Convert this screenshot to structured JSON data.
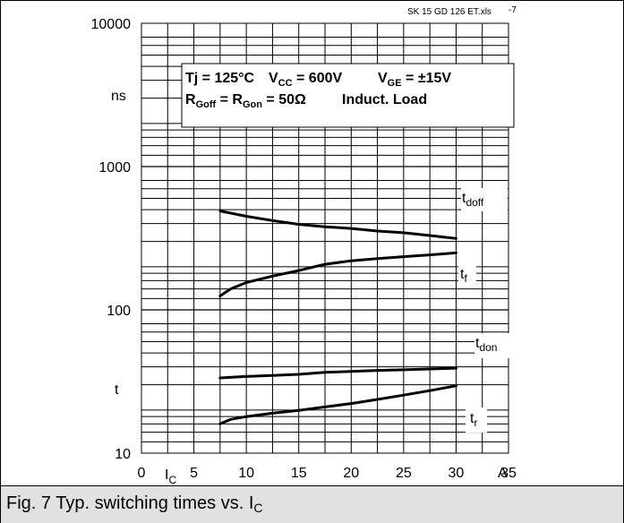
{
  "caption": {
    "text": "Fig. 7 Typ. switching times vs. I",
    "sub": "C"
  },
  "file_tag": "SK 15 GD 126 ET.xls",
  "page_tag": "-7",
  "conditions": {
    "line1": [
      {
        "text": "Tj = 125°C"
      },
      {
        "main": "V",
        "sub": "CC",
        "rest": " = 600V"
      },
      {
        "main": "V",
        "sub": "GE",
        "rest": " = ±15V"
      }
    ],
    "line2": [
      {
        "main": "R",
        "sub": "Goff",
        "rest": " = R"
      },
      {
        "main": "",
        "sub": "Gon",
        "rest": " = 50Ω"
      },
      {
        "text": "Induct. Load"
      }
    ]
  },
  "colors": {
    "line": "#000000",
    "background": "#ffffff",
    "caption_bg": "#e1e1e1"
  },
  "chart_data": {
    "type": "line",
    "yscale": "log",
    "ylim": [
      10,
      10000
    ],
    "xlim": [
      0,
      35
    ],
    "ylabel": "ns",
    "ylabel2": "t",
    "xlabel_symbol": "I",
    "xlabel_sub": "C",
    "xunit": "A",
    "x_ticks": [
      "0",
      "5",
      "10",
      "15",
      "20",
      "25",
      "30",
      "35"
    ],
    "x_tick_values": [
      0,
      5,
      10,
      15,
      20,
      25,
      30,
      35
    ],
    "y_ticks": [
      "10",
      "100",
      "1000",
      "10000"
    ],
    "y_tick_values": [
      10,
      100,
      1000,
      10000
    ],
    "grid": true,
    "series": [
      {
        "name": "doff",
        "label_main": "t",
        "label_sub": "doff",
        "x": [
          7.5,
          10,
          12.5,
          15,
          17.5,
          20,
          22.5,
          25,
          27.5,
          30
        ],
        "y": [
          490,
          450,
          420,
          395,
          380,
          370,
          355,
          345,
          330,
          315
        ]
      },
      {
        "name": "f",
        "label_main": "t",
        "label_sub": "f",
        "x": [
          7.5,
          8.5,
          10,
          12.5,
          15,
          17.5,
          20,
          22.5,
          25,
          27.5,
          30
        ],
        "y": [
          125,
          140,
          155,
          172,
          188,
          208,
          220,
          228,
          235,
          242,
          250
        ]
      },
      {
        "name": "don",
        "label_main": "t",
        "label_sub": "don",
        "x": [
          7.5,
          10,
          12.5,
          15,
          17.5,
          20,
          22.5,
          25,
          27.5,
          30
        ],
        "y": [
          33.5,
          34.3,
          34.8,
          35.5,
          36.6,
          37.2,
          37.8,
          38.2,
          38.7,
          39.2
        ]
      },
      {
        "name": "r",
        "label_main": "t",
        "label_sub": "r",
        "x": [
          7.5,
          8.5,
          10,
          12.5,
          15,
          17.5,
          20,
          22.5,
          25,
          27.5,
          30
        ],
        "y": [
          16,
          17.2,
          18,
          19,
          19.9,
          21,
          22.2,
          23.7,
          25.4,
          27.3,
          29.5
        ]
      }
    ]
  }
}
